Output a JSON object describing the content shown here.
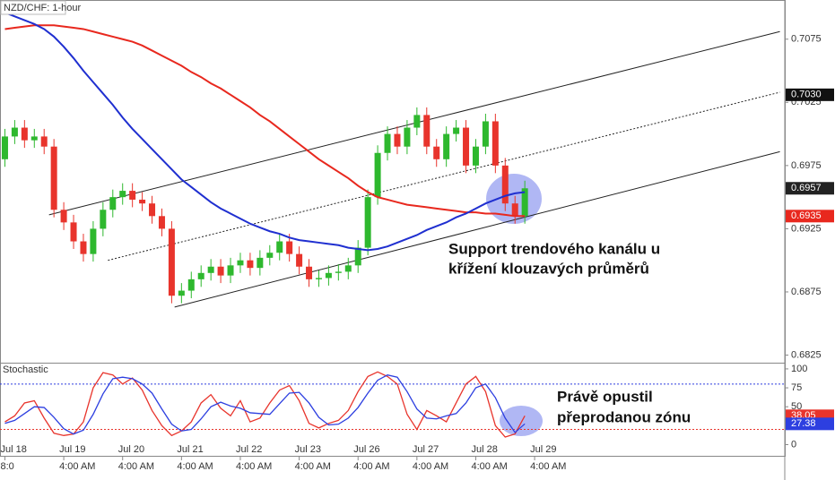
{
  "chart_data": [
    {
      "type": "candlestick",
      "title": "NZD/CHF: 1-hour",
      "ohlc": [
        [
          0.698,
          0.7004,
          0.6974,
          0.6998
        ],
        [
          0.6998,
          0.7011,
          0.6992,
          0.7005
        ],
        [
          0.7005,
          0.7011,
          0.6989,
          0.6995
        ],
        [
          0.6995,
          0.7004,
          0.6989,
          0.6998
        ],
        [
          0.6998,
          0.7004,
          0.6984,
          0.699
        ],
        [
          0.699,
          0.6996,
          0.6934,
          0.694
        ],
        [
          0.694,
          0.6946,
          0.6924,
          0.693
        ],
        [
          0.693,
          0.6936,
          0.6909,
          0.6915
        ],
        [
          0.6915,
          0.6921,
          0.6899,
          0.6905
        ],
        [
          0.6905,
          0.6931,
          0.6899,
          0.6925
        ],
        [
          0.6925,
          0.6946,
          0.6919,
          0.694
        ],
        [
          0.694,
          0.6956,
          0.6934,
          0.695
        ],
        [
          0.695,
          0.6961,
          0.6944,
          0.6955
        ],
        [
          0.6955,
          0.6961,
          0.6942,
          0.6948
        ],
        [
          0.6948,
          0.6954,
          0.6939,
          0.6945
        ],
        [
          0.6945,
          0.6951,
          0.6929,
          0.6935
        ],
        [
          0.6935,
          0.6941,
          0.6919,
          0.6925
        ],
        [
          0.6925,
          0.6931,
          0.6866,
          0.6872
        ],
        [
          0.6872,
          0.6882,
          0.6866,
          0.6876
        ],
        [
          0.6876,
          0.6891,
          0.687,
          0.6885
        ],
        [
          0.6885,
          0.6896,
          0.6879,
          0.689
        ],
        [
          0.689,
          0.6901,
          0.6884,
          0.6895
        ],
        [
          0.6895,
          0.6901,
          0.6882,
          0.6888
        ],
        [
          0.6888,
          0.6902,
          0.6882,
          0.6896
        ],
        [
          0.6896,
          0.6906,
          0.689,
          0.69
        ],
        [
          0.69,
          0.6906,
          0.6888,
          0.6894
        ],
        [
          0.6894,
          0.6908,
          0.6888,
          0.6902
        ],
        [
          0.6902,
          0.6912,
          0.6896,
          0.6906
        ],
        [
          0.6906,
          0.6921,
          0.69,
          0.6915
        ],
        [
          0.6915,
          0.6921,
          0.6899,
          0.6905
        ],
        [
          0.6905,
          0.6911,
          0.6889,
          0.6895
        ],
        [
          0.6895,
          0.6901,
          0.6879,
          0.6885
        ],
        [
          0.6885,
          0.6892,
          0.6879,
          0.6886
        ],
        [
          0.6886,
          0.6896,
          0.688,
          0.689
        ],
        [
          0.689,
          0.6897,
          0.6884,
          0.6891
        ],
        [
          0.6891,
          0.6902,
          0.6885,
          0.6896
        ],
        [
          0.6896,
          0.6916,
          0.689,
          0.691
        ],
        [
          0.691,
          0.6956,
          0.6904,
          0.695
        ],
        [
          0.695,
          0.6991,
          0.6944,
          0.6985
        ],
        [
          0.6985,
          0.7006,
          0.6979,
          0.7
        ],
        [
          0.7,
          0.7006,
          0.6984,
          0.699
        ],
        [
          0.699,
          0.7011,
          0.6984,
          0.7005
        ],
        [
          0.7005,
          0.7021,
          0.6999,
          0.7015
        ],
        [
          0.7015,
          0.7021,
          0.6984,
          0.699
        ],
        [
          0.699,
          0.6996,
          0.6974,
          0.698
        ],
        [
          0.698,
          0.7006,
          0.6974,
          0.7
        ],
        [
          0.7,
          0.7011,
          0.6994,
          0.7005
        ],
        [
          0.7005,
          0.7011,
          0.6969,
          0.6975
        ],
        [
          0.6975,
          0.6996,
          0.6969,
          0.699
        ],
        [
          0.699,
          0.7016,
          0.6984,
          0.701
        ],
        [
          0.701,
          0.7016,
          0.6969,
          0.6975
        ],
        [
          0.6975,
          0.6981,
          0.6939,
          0.6945
        ],
        [
          0.6945,
          0.6951,
          0.6929,
          0.6935
        ],
        [
          0.6935,
          0.6963,
          0.6929,
          0.6957
        ]
      ],
      "up_color": "#2eb82e",
      "down_color": "#e8342c",
      "lines": [
        {
          "color": "#e8281e",
          "values": [
            0.7083,
            0.7084,
            0.7085,
            0.7086,
            0.7086,
            0.7086,
            0.7085,
            0.7084,
            0.7083,
            0.7081,
            0.7079,
            0.7077,
            0.7075,
            0.7073,
            0.707,
            0.7066,
            0.7062,
            0.7058,
            0.7054,
            0.7049,
            0.7045,
            0.704,
            0.7036,
            0.7031,
            0.7026,
            0.7021,
            0.7015,
            0.701,
            0.7004,
            0.6998,
            0.6992,
            0.6986,
            0.698,
            0.6975,
            0.697,
            0.6965,
            0.6959,
            0.6954,
            0.695,
            0.6948,
            0.6946,
            0.6944,
            0.6943,
            0.6942,
            0.6941,
            0.694,
            0.6939,
            0.6938,
            0.6938,
            0.6937,
            0.6937,
            0.6936,
            0.6935,
            0.6935
          ]
        },
        {
          "color": "#1f2fd0",
          "values": [
            0.7096,
            0.7093,
            0.709,
            0.7087,
            0.7083,
            0.7077,
            0.7069,
            0.706,
            0.705,
            0.7041,
            0.7032,
            0.7023,
            0.7013,
            0.7004,
            0.6996,
            0.6988,
            0.698,
            0.6972,
            0.6964,
            0.6958,
            0.6952,
            0.6946,
            0.6941,
            0.6937,
            0.6933,
            0.6929,
            0.6926,
            0.6923,
            0.6921,
            0.6918,
            0.6916,
            0.6915,
            0.6914,
            0.6913,
            0.6912,
            0.691,
            0.6909,
            0.6908,
            0.6909,
            0.6911,
            0.6914,
            0.6917,
            0.692,
            0.6924,
            0.6927,
            0.693,
            0.6934,
            0.6937,
            0.6941,
            0.6945,
            0.6948,
            0.6951,
            0.6953,
            0.6954
          ]
        }
      ],
      "trendlines": [
        {
          "x": [
            4.5,
            79
          ],
          "y": [
            0.6936,
            0.7081
          ],
          "style": "solid"
        },
        {
          "x": [
            10.5,
            79
          ],
          "y": [
            0.69,
            0.7033
          ],
          "style": "dotted"
        },
        {
          "x": [
            17.3,
            79
          ],
          "y": [
            0.6863,
            0.6986
          ],
          "style": "solid"
        }
      ],
      "xlim": [
        -0.5,
        79.5
      ],
      "ylim": [
        0.6819,
        0.7106
      ],
      "yticks": [
        0.7075,
        0.7025,
        0.6975,
        0.6925,
        0.6875,
        0.6825
      ],
      "price_labels": [
        {
          "value": 0.7031,
          "label": "0.7030"
        }
      ],
      "annotations": [
        "Support trendového kanálu u",
        "křížení klouzavých průměrů"
      ]
    },
    {
      "type": "line",
      "title": "Stochastic",
      "series": [
        {
          "color": "#e8342c",
          "values": [
            30,
            38,
            55,
            58,
            35,
            15,
            12,
            14,
            30,
            75,
            95,
            92,
            80,
            88,
            72,
            45,
            25,
            12,
            18,
            30,
            55,
            66,
            48,
            38,
            58,
            30,
            35,
            55,
            72,
            78,
            58,
            28,
            22,
            28,
            32,
            45,
            70,
            90,
            96,
            90,
            80,
            40,
            20,
            45,
            38,
            30,
            55,
            80,
            90,
            70,
            25,
            10,
            14,
            38.05
          ]
        },
        {
          "color": "#2d3fe0",
          "values": [
            28,
            32,
            41,
            50,
            49,
            36,
            21,
            14,
            19,
            40,
            67,
            87,
            89,
            87,
            80,
            68,
            47,
            27,
            18,
            20,
            34,
            50,
            56,
            51,
            48,
            42,
            41,
            40,
            54,
            68,
            69,
            55,
            36,
            26,
            27,
            35,
            49,
            68,
            85,
            92,
            89,
            70,
            47,
            35,
            34,
            38,
            41,
            55,
            75,
            80,
            62,
            35,
            16,
            27.38
          ]
        }
      ],
      "levels": [
        {
          "value": 80,
          "color": "#2d3fe0"
        },
        {
          "value": 20,
          "color": "#e8342c"
        }
      ],
      "xlim": [
        -0.5,
        79.5
      ],
      "ylim": [
        -16,
        107
      ],
      "yticks": [
        100,
        75,
        50,
        25,
        0
      ],
      "xticks": [
        {
          "value": 0,
          "label": "Jul 18"
        },
        {
          "value": 6,
          "label": "Jul 19"
        },
        {
          "value": 12,
          "label": "Jul 20"
        },
        {
          "value": 18,
          "label": "Jul 21"
        },
        {
          "value": 24,
          "label": "Jul 22"
        },
        {
          "value": 30,
          "label": "Jul 23"
        },
        {
          "value": 36,
          "label": "Jul 26"
        },
        {
          "value": 42,
          "label": "Jul 27"
        },
        {
          "value": 48,
          "label": "Jul 28"
        },
        {
          "value": 54,
          "label": "Jul 29"
        }
      ],
      "xtick_times": [
        "8:0",
        "4:00 AM",
        "4:00 AM",
        "4:00 AM",
        "4:00 AM",
        "4:00 AM",
        "4:00 AM",
        "4:00 AM",
        "4:00 AM",
        "4:00 AM"
      ],
      "annotations": [
        "Právě opustil",
        "přeprodanou zónu"
      ]
    }
  ]
}
